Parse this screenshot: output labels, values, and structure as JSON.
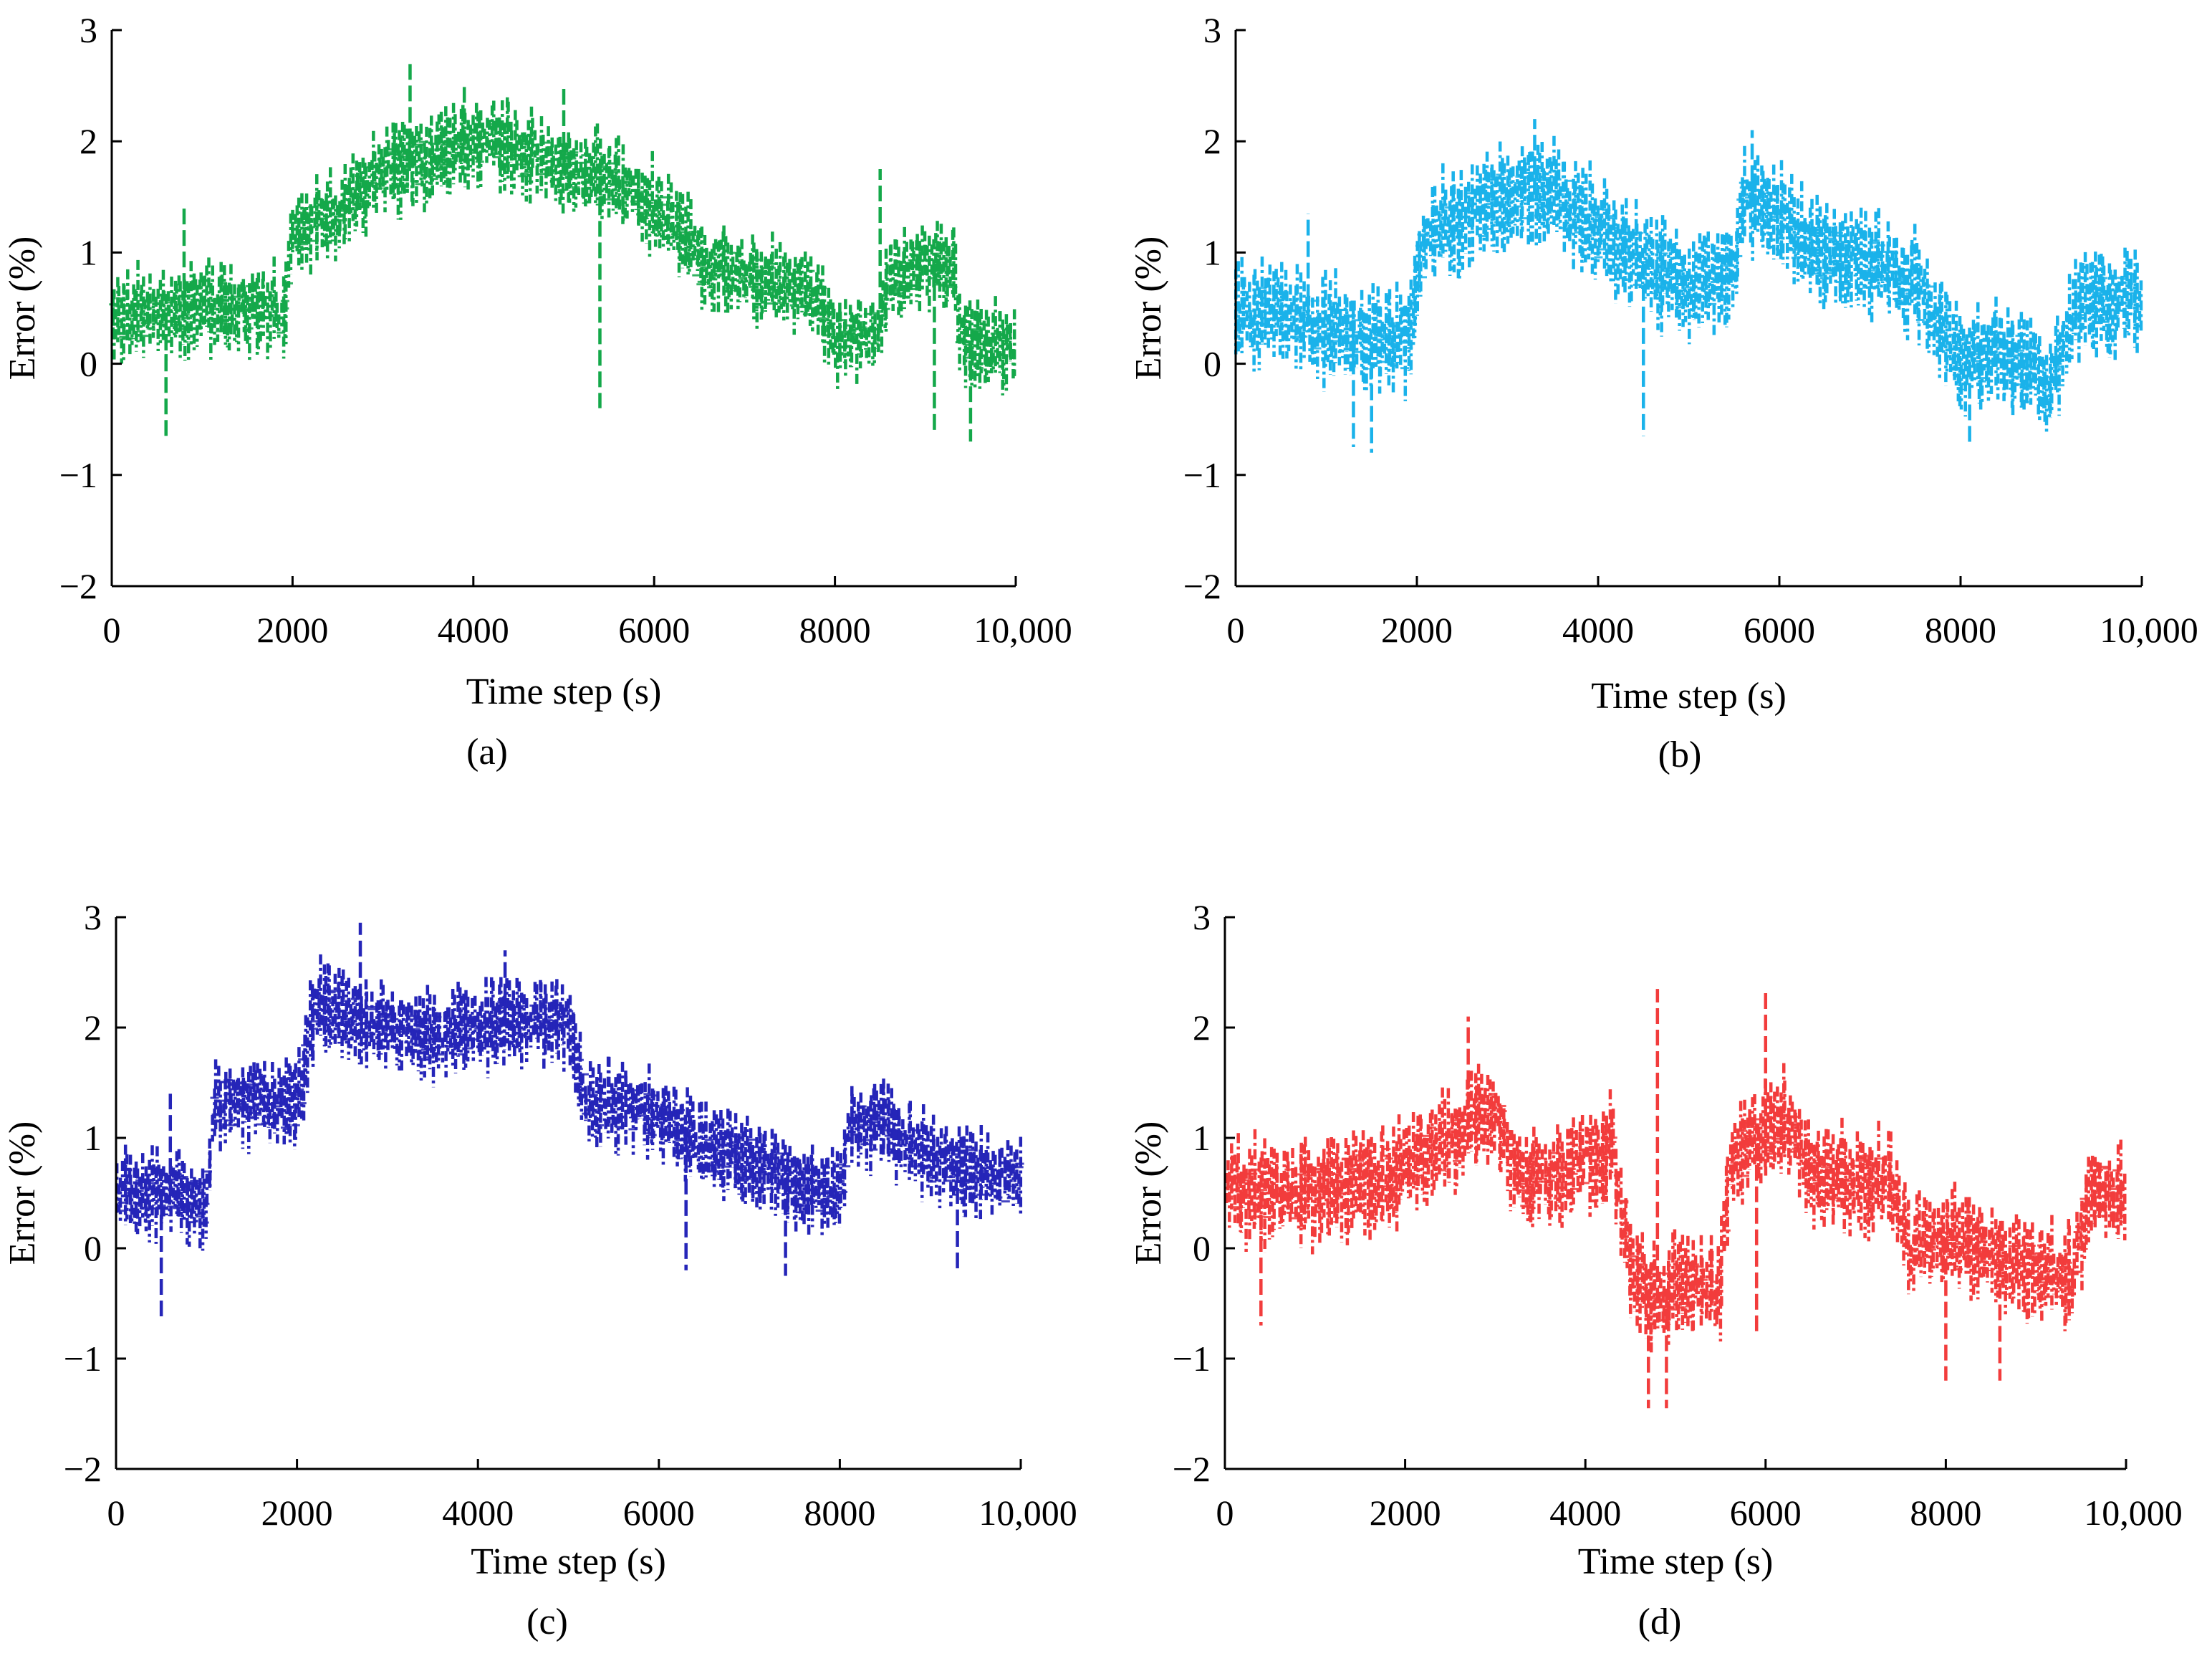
{
  "colors": {
    "a": "#14a84a",
    "b": "#1ab2ea",
    "c": "#2525b8",
    "d": "#f23c3c",
    "axis": "#000000"
  },
  "chart_data": [
    {
      "type": "line",
      "panel_label": "(a)",
      "title": "",
      "xlabel": "Time step (s)",
      "ylabel": "Error (%)",
      "xlim": [
        0,
        10000
      ],
      "ylim": [
        -2,
        3
      ],
      "x_ticks": [
        0,
        2000,
        4000,
        6000,
        8000,
        10000
      ],
      "x_tick_labels": [
        "0",
        "2000",
        "4000",
        "6000",
        "8000",
        "10,000"
      ],
      "y_ticks": [
        -2,
        -1,
        0,
        1,
        2,
        3
      ],
      "y_tick_labels": [
        "−2",
        "−1",
        "0",
        "1",
        "2",
        "3"
      ],
      "color": "#14a84a",
      "trend": {
        "x": [
          0,
          500,
          1000,
          1500,
          1900,
          2000,
          2500,
          3000,
          3500,
          4000,
          4500,
          5000,
          5500,
          6000,
          6300,
          6500,
          7000,
          7500,
          7800,
          8000,
          8500,
          8600,
          9000,
          9300,
          9400,
          10000
        ],
        "y": [
          0.4,
          0.45,
          0.5,
          0.5,
          0.45,
          1.2,
          1.3,
          1.75,
          1.8,
          2.0,
          1.9,
          1.75,
          1.65,
          1.4,
          1.2,
          0.9,
          0.8,
          0.7,
          0.6,
          0.2,
          0.3,
          0.75,
          0.9,
          0.9,
          0.2,
          0.1
        ]
      },
      "spread": 0.3,
      "spikes": [
        [
          0.06,
          -0.7
        ],
        [
          0.08,
          1.4
        ],
        [
          0.33,
          2.7
        ],
        [
          0.39,
          2.5
        ],
        [
          0.5,
          2.5
        ],
        [
          0.85,
          1.75
        ],
        [
          0.95,
          -0.7
        ],
        [
          0.91,
          -0.6
        ],
        [
          0.54,
          -0.4
        ]
      ]
    },
    {
      "type": "line",
      "panel_label": "(b)",
      "title": "",
      "xlabel": "Time step (s)",
      "ylabel": "Error (%)",
      "xlim": [
        0,
        10000
      ],
      "ylim": [
        -2,
        3
      ],
      "x_ticks": [
        0,
        2000,
        4000,
        6000,
        8000,
        10000
      ],
      "x_tick_labels": [
        "0",
        "2000",
        "4000",
        "6000",
        "8000",
        "10,000"
      ],
      "y_ticks": [
        -2,
        -1,
        0,
        1,
        2,
        3
      ],
      "y_tick_labels": [
        "−2",
        "−1",
        "0",
        "1",
        "2",
        "3"
      ],
      "color": "#1ab2ea",
      "trend": {
        "x": [
          0,
          500,
          1000,
          1500,
          1900,
          2100,
          2500,
          3000,
          3500,
          4000,
          4500,
          5000,
          5500,
          5600,
          5800,
          6000,
          6500,
          7000,
          7500,
          8000,
          8500,
          9000,
          9300,
          10000
        ],
        "y": [
          0.4,
          0.5,
          0.3,
          0.2,
          0.2,
          1.2,
          1.3,
          1.5,
          1.55,
          1.2,
          0.9,
          0.7,
          0.8,
          1.4,
          1.5,
          1.3,
          1.0,
          0.9,
          0.7,
          0.0,
          0.1,
          -0.2,
          0.5,
          0.6
        ]
      },
      "spread": 0.35,
      "spikes": [
        [
          0.33,
          2.2
        ],
        [
          0.57,
          2.1
        ],
        [
          0.81,
          -0.75
        ],
        [
          0.15,
          -0.8
        ],
        [
          0.13,
          -0.75
        ],
        [
          0.45,
          -0.65
        ],
        [
          0.08,
          1.35
        ]
      ]
    },
    {
      "type": "line",
      "panel_label": "(c)",
      "title": "",
      "xlabel": "Time step (s)",
      "ylabel": "Error (%)",
      "xlim": [
        0,
        10000
      ],
      "ylim": [
        -2,
        3
      ],
      "x_ticks": [
        0,
        2000,
        4000,
        6000,
        8000,
        10000
      ],
      "x_tick_labels": [
        "0",
        "2000",
        "4000",
        "6000",
        "8000",
        "10,000"
      ],
      "y_ticks": [
        -2,
        -1,
        0,
        1,
        2,
        3
      ],
      "y_tick_labels": [
        "−2",
        "−1",
        "0",
        "1",
        "2",
        "3"
      ],
      "color": "#2525b8",
      "trend": {
        "x": [
          0,
          500,
          1000,
          1100,
          1500,
          2000,
          2200,
          2500,
          3000,
          3500,
          4000,
          4500,
          5000,
          5200,
          5500,
          6000,
          6500,
          7000,
          7500,
          8000,
          8100,
          8500,
          9000,
          9500,
          10000
        ],
        "y": [
          0.5,
          0.5,
          0.4,
          1.3,
          1.35,
          1.25,
          2.2,
          2.1,
          2.0,
          1.9,
          2.0,
          2.1,
          2.0,
          1.3,
          1.3,
          1.2,
          0.9,
          0.8,
          0.6,
          0.5,
          1.1,
          1.1,
          0.8,
          0.7,
          0.6
        ]
      },
      "spread": 0.3,
      "spikes": [
        [
          0.27,
          2.95
        ],
        [
          0.43,
          2.7
        ],
        [
          0.05,
          -0.65
        ],
        [
          0.06,
          1.4
        ],
        [
          0.63,
          -0.2
        ],
        [
          0.74,
          -0.25
        ],
        [
          0.93,
          -0.2
        ]
      ]
    },
    {
      "type": "line",
      "panel_label": "(d)",
      "title": "",
      "xlabel": "Time step (s)",
      "ylabel": "Error (%)",
      "xlim": [
        0,
        10000
      ],
      "ylim": [
        -2,
        3
      ],
      "x_ticks": [
        0,
        2000,
        4000,
        6000,
        8000,
        10000
      ],
      "x_tick_labels": [
        "0",
        "2000",
        "4000",
        "6000",
        "8000",
        "10,000"
      ],
      "y_ticks": [
        -2,
        -1,
        0,
        1,
        2,
        3
      ],
      "y_tick_labels": [
        "−2",
        "−1",
        "0",
        "1",
        "2",
        "3"
      ],
      "color": "#f23c3c",
      "trend": {
        "x": [
          0,
          500,
          1000,
          1500,
          2000,
          2500,
          3000,
          3300,
          3500,
          4000,
          4300,
          4500,
          4800,
          5000,
          5500,
          5600,
          6000,
          6200,
          6500,
          7000,
          7400,
          7600,
          8000,
          8500,
          9000,
          9400,
          9600,
          10000
        ],
        "y": [
          0.5,
          0.5,
          0.5,
          0.6,
          0.7,
          1.0,
          1.2,
          0.6,
          0.6,
          0.8,
          0.9,
          -0.2,
          -0.5,
          -0.3,
          -0.4,
          0.8,
          1.0,
          1.2,
          0.7,
          0.6,
          0.6,
          0.0,
          0.1,
          -0.1,
          -0.2,
          -0.3,
          0.5,
          0.5
        ]
      },
      "spread": 0.35,
      "spikes": [
        [
          0.48,
          2.35
        ],
        [
          0.6,
          2.35
        ],
        [
          0.27,
          2.1
        ],
        [
          0.47,
          -1.45
        ],
        [
          0.49,
          -1.45
        ],
        [
          0.8,
          -1.2
        ],
        [
          0.86,
          -1.2
        ],
        [
          0.59,
          -0.8
        ],
        [
          0.04,
          -0.7
        ]
      ]
    }
  ]
}
